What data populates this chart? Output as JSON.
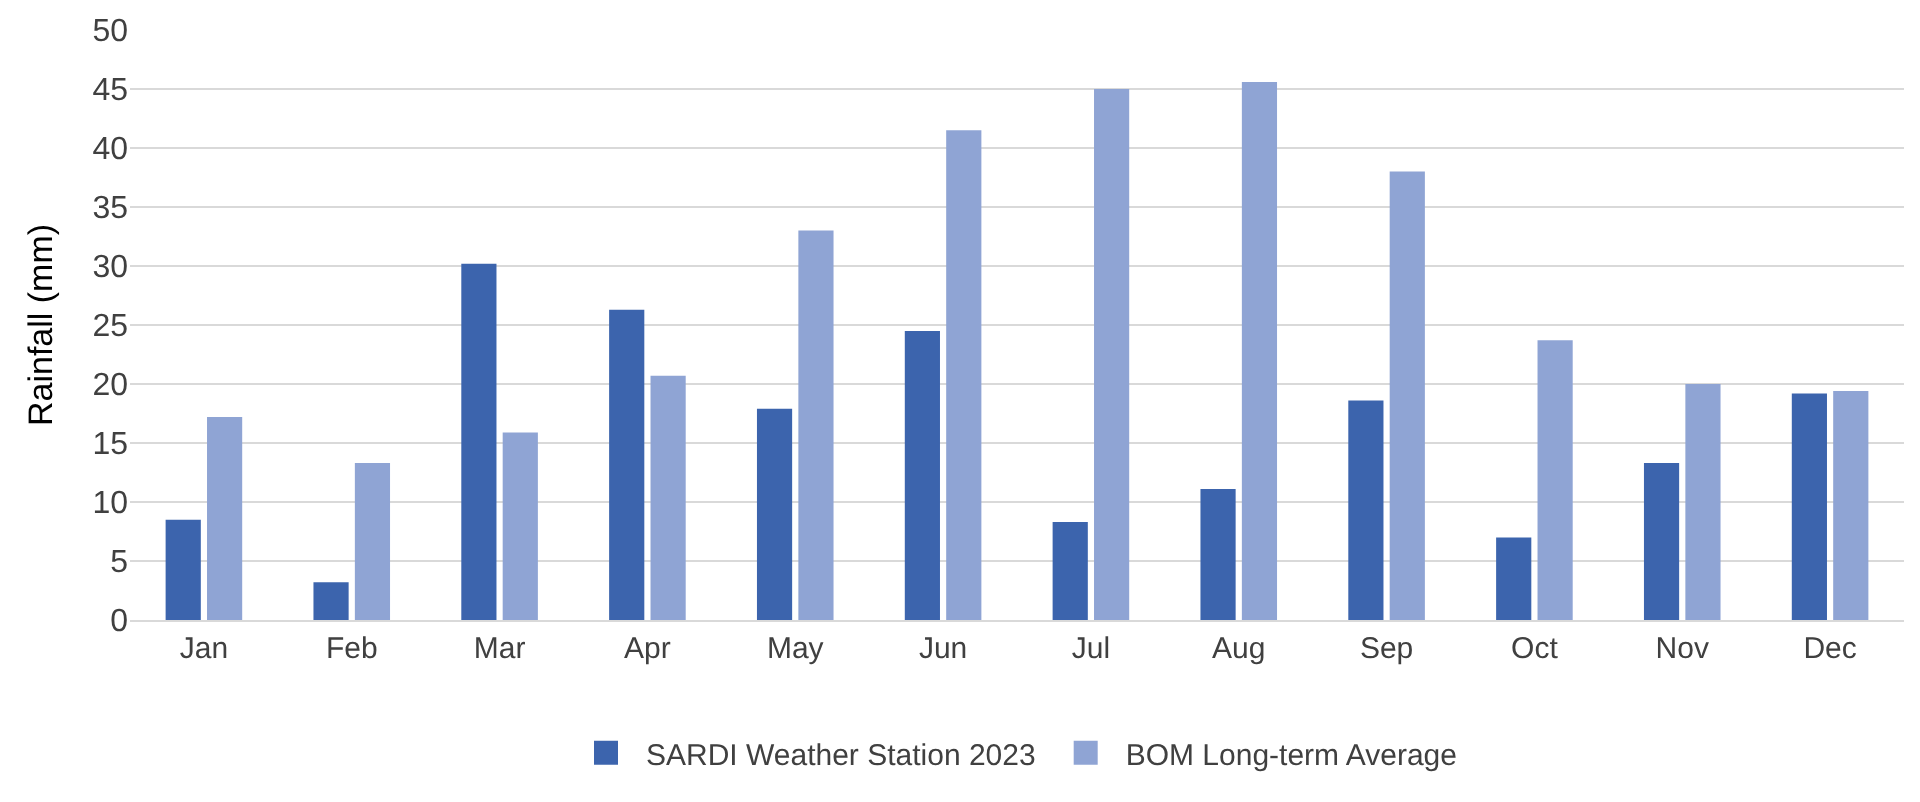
{
  "chart_data": {
    "type": "bar",
    "ylabel": "Rainfall (mm)",
    "categories": [
      "Jan",
      "Feb",
      "Mar",
      "Apr",
      "May",
      "Jun",
      "Jul",
      "Aug",
      "Sep",
      "Oct",
      "Nov",
      "Dec"
    ],
    "series": [
      {
        "name": "SARDI Weather Station 2023",
        "color": "#3c64ad",
        "values": [
          8.5,
          3.2,
          30.2,
          26.3,
          17.9,
          24.5,
          8.3,
          11.1,
          18.6,
          7.0,
          13.3,
          19.2
        ]
      },
      {
        "name": "BOM Long-term Average",
        "color": "#8fa4d4",
        "values": [
          17.2,
          13.3,
          15.9,
          20.7,
          33.0,
          41.5,
          45.0,
          45.6,
          38.0,
          23.7,
          20.0,
          19.4
        ]
      }
    ],
    "ylim": [
      0,
      50
    ],
    "yticks": [
      0,
      5,
      10,
      15,
      20,
      25,
      30,
      35,
      40,
      45,
      50
    ],
    "grid": "y",
    "legend": "bottom"
  }
}
